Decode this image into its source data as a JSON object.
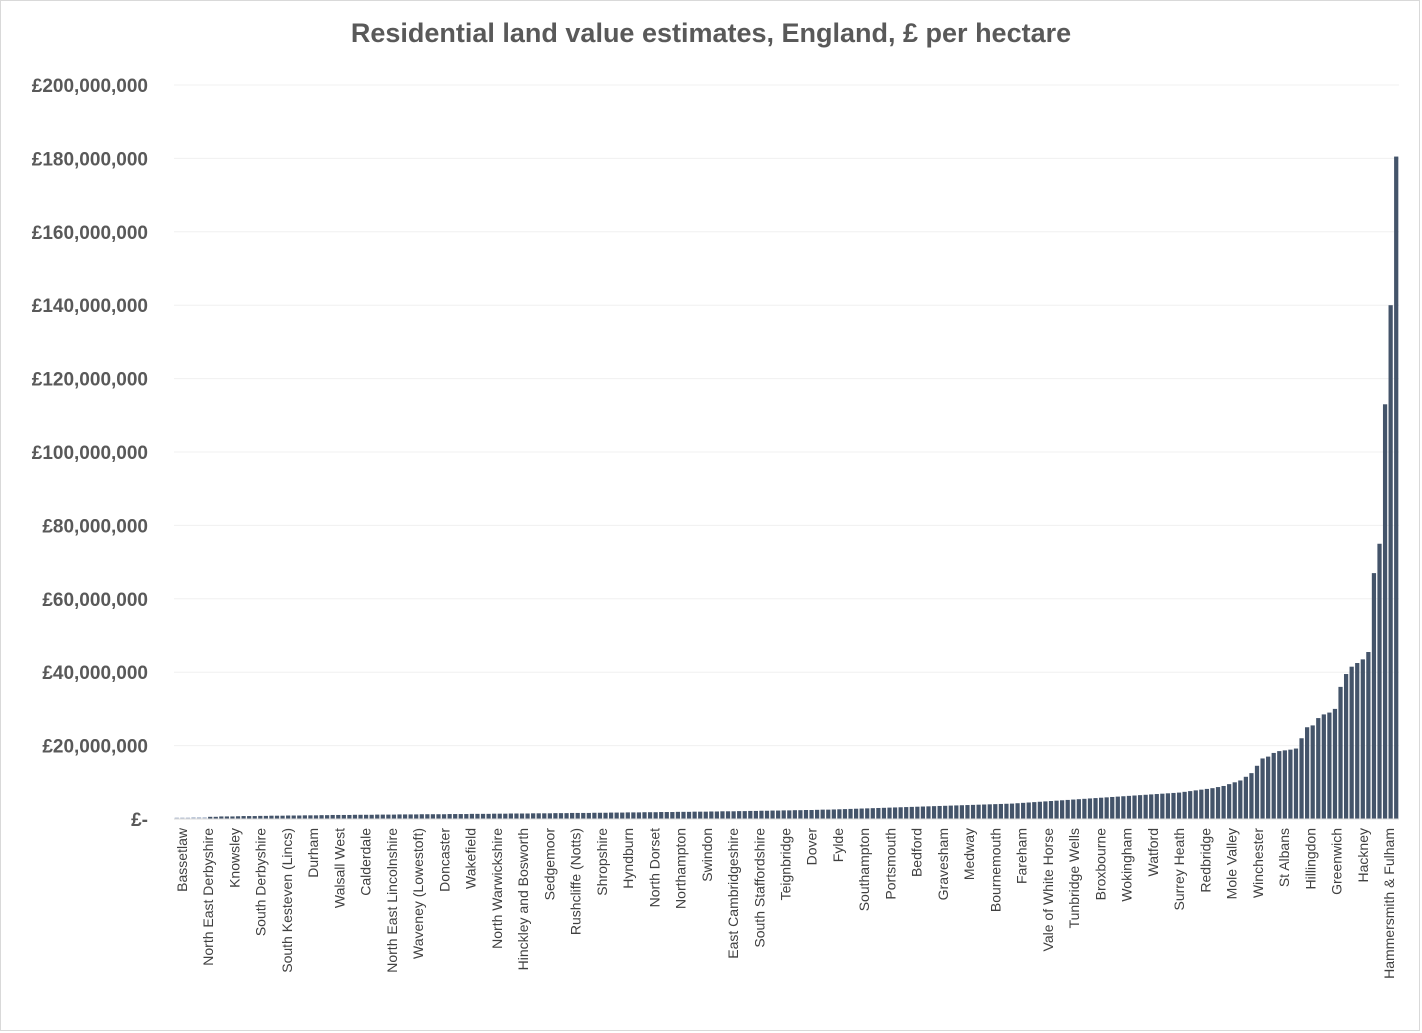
{
  "chart_data": {
    "type": "bar",
    "title": "Residential land value estimates, England, £ per hectare",
    "xlabel": "",
    "ylabel": "",
    "ylim": [
      0,
      200000000
    ],
    "y_tick_labels": [
      "£-",
      "£20,000,000",
      "£40,000,000",
      "£60,000,000",
      "£80,000,000",
      "£100,000,000",
      "£120,000,000",
      "£140,000,000",
      "£160,000,000",
      "£180,000,000",
      "£200,000,000"
    ],
    "y_tick_values": [
      0,
      20000000,
      40000000,
      60000000,
      80000000,
      100000000,
      120000000,
      140000000,
      160000000,
      180000000,
      200000000
    ],
    "grid": true,
    "bar_color": "#44546a",
    "grid_color": "#f0f0f0",
    "categories": [
      "Bassetlaw",
      "North East Derbyshire",
      "Knowsley",
      "South Derbyshire",
      "South Kesteven (Lincs)",
      "Durham",
      "Walsall West",
      "Calderdale",
      "North East Lincolnshire",
      "Waveney (Lowestoft)",
      "Doncaster",
      "Wakefield",
      "North Warwickshire",
      "Hinckley and Bosworth",
      "Sedgemoor",
      "Rushcliffe (Notts)",
      "Shropshire",
      "Hyndburn",
      "North Dorset",
      "Northampton",
      "Swindon",
      "East Cambridgeshire",
      "South Staffordshire",
      "Teignbridge",
      "Dover",
      "Fylde",
      "Southampton",
      "Portsmouth",
      "Bedford",
      "Gravesham",
      "Medway",
      "Bournemouth",
      "Fareham",
      "Vale of White Horse",
      "Tunbridge Wells",
      "Broxbourne",
      "Wokingham",
      "Watford",
      "Surrey Heath",
      "Redbridge",
      "Mole Valley",
      "Winchester",
      "St Albans",
      "Hillingdon",
      "Greenwich",
      "Hackney",
      "Hammersmith & Fulham"
    ],
    "values": [
      400000,
      600000,
      800000,
      900000,
      1000000,
      1100000,
      1150000,
      1200000,
      1250000,
      1300000,
      1350000,
      1400000,
      1500000,
      1550000,
      1600000,
      1700000,
      1800000,
      1850000,
      1900000,
      2000000,
      2100000,
      2200000,
      2300000,
      2400000,
      2500000,
      2600000,
      2800000,
      3000000,
      3200000,
      3400000,
      3500000,
      3700000,
      3900000,
      4100000,
      4500000,
      5000000,
      5400000,
      5800000,
      6100000,
      6500000,
      7000000,
      7600000,
      9500000,
      16500000,
      27000000,
      40000000,
      180000000
    ],
    "all_bar_values": [
      400000,
      400000,
      400000,
      500000,
      500000,
      500000,
      600000,
      600000,
      700000,
      700000,
      700000,
      750000,
      800000,
      800000,
      800000,
      850000,
      850000,
      900000,
      900000,
      900000,
      950000,
      950000,
      950000,
      1000000,
      1000000,
      1000000,
      1050000,
      1050000,
      1100000,
      1100000,
      1100000,
      1100000,
      1150000,
      1150000,
      1150000,
      1150000,
      1200000,
      1200000,
      1200000,
      1200000,
      1250000,
      1250000,
      1250000,
      1250000,
      1300000,
      1300000,
      1300000,
      1300000,
      1300000,
      1350000,
      1350000,
      1350000,
      1350000,
      1400000,
      1400000,
      1400000,
      1400000,
      1450000,
      1450000,
      1450000,
      1500000,
      1500000,
      1500000,
      1500000,
      1550000,
      1550000,
      1550000,
      1550000,
      1600000,
      1600000,
      1600000,
      1650000,
      1650000,
      1650000,
      1650000,
      1700000,
      1700000,
      1700000,
      1750000,
      1750000,
      1750000,
      1800000,
      1800000,
      1800000,
      1850000,
      1850000,
      1850000,
      1900000,
      1900000,
      1900000,
      1950000,
      1950000,
      1950000,
      2000000,
      2000000,
      2000000,
      2050000,
      2050000,
      2100000,
      2100000,
      2100000,
      2150000,
      2150000,
      2200000,
      2200000,
      2250000,
      2250000,
      2300000,
      2300000,
      2350000,
      2350000,
      2400000,
      2400000,
      2450000,
      2450000,
      2500000,
      2550000,
      2550000,
      2600000,
      2650000,
      2700000,
      2750000,
      2800000,
      2850000,
      2900000,
      2950000,
      3000000,
      3050000,
      3100000,
      3150000,
      3200000,
      3250000,
      3300000,
      3350000,
      3400000,
      3450000,
      3500000,
      3550000,
      3600000,
      3650000,
      3700000,
      3750000,
      3800000,
      3850000,
      3900000,
      3950000,
      4000000,
      4050000,
      4100000,
      4150000,
      4200000,
      4300000,
      4400000,
      4500000,
      4600000,
      4700000,
      4800000,
      4900000,
      5000000,
      5100000,
      5200000,
      5300000,
      5400000,
      5500000,
      5600000,
      5700000,
      5800000,
      5900000,
      6000000,
      6100000,
      6200000,
      6300000,
      6400000,
      6500000,
      6600000,
      6700000,
      6800000,
      6900000,
      7000000,
      7100000,
      7200000,
      7400000,
      7600000,
      7800000,
      8000000,
      8200000,
      8400000,
      8700000,
      9000000,
      9500000,
      10000000,
      10500000,
      11500000,
      12500000,
      14500000,
      16500000,
      17000000,
      18000000,
      18500000,
      18700000,
      18900000,
      19200000,
      22000000,
      25000000,
      25500000,
      27500000,
      28500000,
      29000000,
      30000000,
      36000000,
      39500000,
      41500000,
      42500000,
      43500000,
      45500000,
      67000000,
      75000000,
      113000000,
      140000000,
      180500000
    ]
  }
}
